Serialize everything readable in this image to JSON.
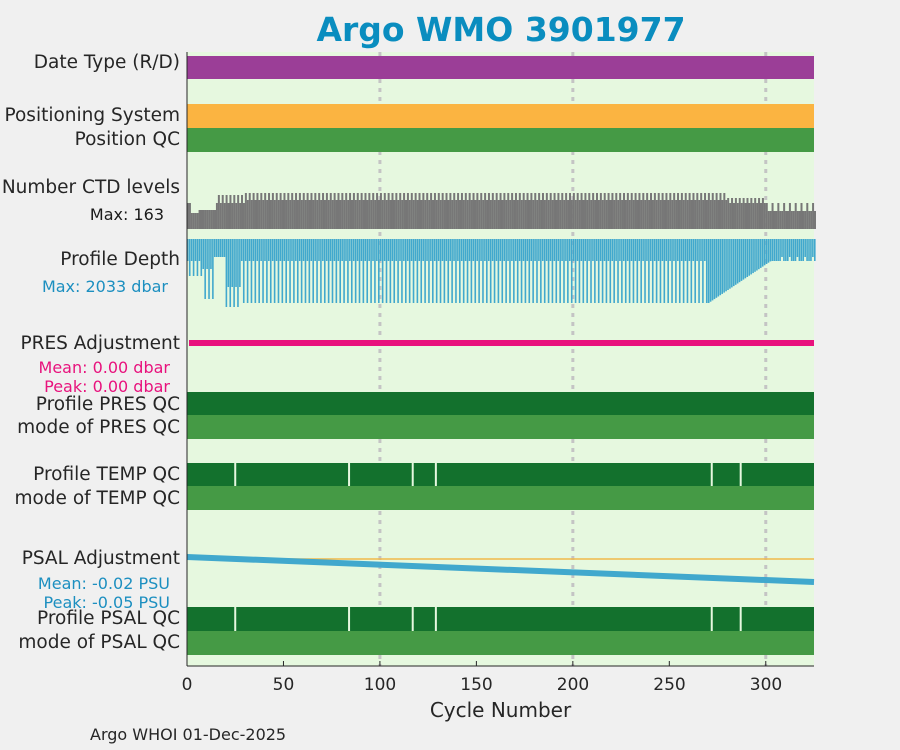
{
  "chart_data": {
    "type": "timeline",
    "title": "Argo WMO 3901977",
    "xlabel": "Cycle Number",
    "xlim": [
      0,
      325
    ],
    "xticks": [
      0,
      50,
      100,
      150,
      200,
      250,
      300
    ],
    "grid_x": [
      100,
      200,
      300
    ],
    "rows": [
      {
        "label": "Date Type (R/D)",
        "color": "#9b3e97"
      },
      {
        "label": "Positioning System",
        "color": "#fbb441"
      },
      {
        "label": "Position QC",
        "color": "#459a45"
      },
      {
        "label": "Number CTD levels",
        "annotation": "Max: 163",
        "max": 163,
        "color": "#777777"
      },
      {
        "label": "Profile Depth",
        "annotation": "Max: 2033 dbar",
        "max_dbar": 2033,
        "color": "#41a8cd"
      },
      {
        "label": "PRES Adjustment",
        "annotation_mean": "Mean: 0.00 dbar",
        "annotation_peak": "Peak: 0.00 dbar",
        "mean": 0.0,
        "peak": 0.0,
        "color": "#e8127d"
      },
      {
        "label": "Profile PRES QC",
        "color": "#13712d"
      },
      {
        "label": "mode of PRES QC",
        "color": "#459a45"
      },
      {
        "label": "Profile TEMP QC",
        "color": "#13712d",
        "breaks": [
          25,
          84,
          117,
          129,
          272,
          287
        ]
      },
      {
        "label": "mode of TEMP QC",
        "color": "#459a45"
      },
      {
        "label": "PSAL Adjustment",
        "annotation_mean": "Mean: -0.02 PSU",
        "annotation_peak": "Peak: -0.05 PSU",
        "mean": -0.02,
        "peak": -0.05,
        "start": -0.0,
        "end": -0.05,
        "color": "#41a8cd"
      },
      {
        "label": "Profile PSAL QC",
        "color": "#13712d",
        "breaks": [
          25,
          84,
          117,
          129,
          272,
          287
        ]
      },
      {
        "label": "mode of PSAL QC",
        "color": "#459a45"
      }
    ],
    "footer": "Argo WHOI 01-Dec-2025"
  }
}
